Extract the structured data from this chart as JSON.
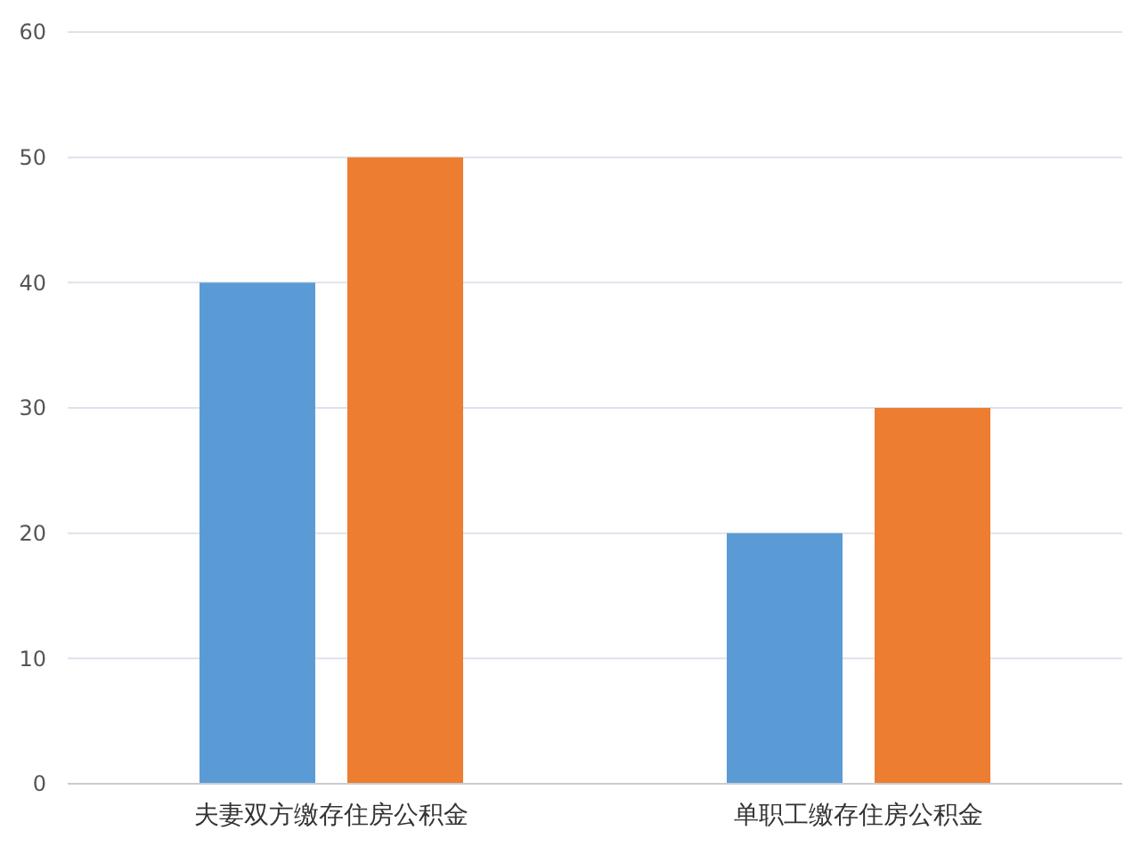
{
  "chart_data": {
    "type": "bar",
    "categories": [
      "夫妻双方缴存住房公积金",
      "单职工缴存住房公积金"
    ],
    "series": [
      {
        "color": "#5b9bd5",
        "values": [
          40,
          20
        ]
      },
      {
        "color": "#ed7d31",
        "values": [
          50,
          30
        ]
      }
    ],
    "ylim": [
      0,
      60
    ],
    "yticks": [
      0,
      10,
      20,
      30,
      40,
      50,
      60
    ],
    "grid": "y"
  }
}
